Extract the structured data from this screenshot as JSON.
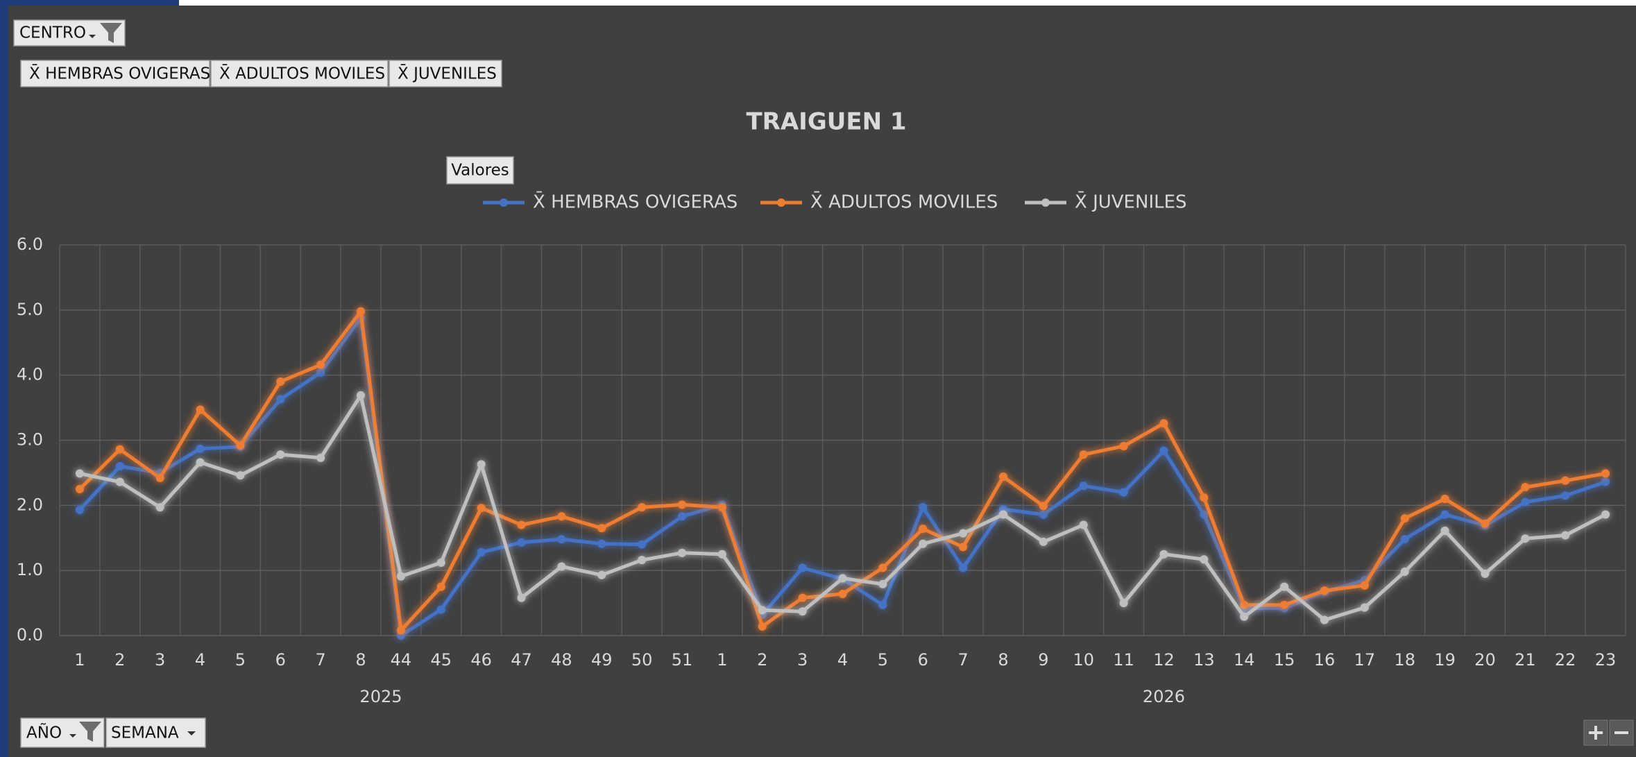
{
  "chart_data": {
    "type": "line",
    "title": "TRAIGUEN 1",
    "controls": {
      "centro": "CENTRO",
      "valores": "Valores",
      "ano": "AÑO",
      "semana": "SEMANA"
    },
    "groups": [
      {
        "label": "2025",
        "categories": [
          "1",
          "2",
          "3",
          "4",
          "5",
          "6",
          "7",
          "8",
          "44",
          "45",
          "46",
          "47",
          "48",
          "49",
          "50",
          "51"
        ]
      },
      {
        "label": "2026",
        "categories": [
          "1",
          "2",
          "3",
          "4",
          "5",
          "6",
          "7",
          "8",
          "9",
          "10",
          "11",
          "12",
          "13",
          "14",
          "15",
          "16",
          "17",
          "18",
          "19",
          "20",
          "21",
          "22",
          "23"
        ]
      }
    ],
    "ylim": [
      0,
      6
    ],
    "yticks": [
      {
        "value": 0,
        "label": "0.0"
      },
      {
        "value": 1,
        "label": "1.0"
      },
      {
        "value": 2,
        "label": "2.0"
      },
      {
        "value": 3,
        "label": "3.0"
      },
      {
        "value": 4,
        "label": "4.0"
      },
      {
        "value": 5,
        "label": "5.0"
      },
      {
        "value": 6,
        "label": "6.0"
      }
    ],
    "grid": true,
    "legend": "top",
    "series": [
      {
        "name": "X̄ HEMBRAS OVIGERAS",
        "color": "#4472c4",
        "values": [
          1.93,
          2.6,
          2.5,
          2.87,
          2.9,
          3.63,
          4.04,
          4.88,
          0.0,
          0.4,
          1.28,
          1.43,
          1.48,
          1.41,
          1.4,
          1.83,
          2.01,
          0.32,
          1.04,
          0.87,
          0.47,
          1.97,
          1.04,
          1.94,
          1.86,
          2.3,
          2.2,
          2.84,
          1.86,
          0.42,
          0.42,
          0.67,
          0.85,
          1.48,
          1.86,
          1.69,
          2.05,
          2.15,
          2.36
        ]
      },
      {
        "name": "X̄ ADULTOS MOVILES",
        "color": "#ed7d31",
        "values": [
          2.25,
          2.86,
          2.42,
          3.47,
          2.92,
          3.9,
          4.16,
          4.98,
          0.08,
          0.75,
          1.96,
          1.7,
          1.83,
          1.65,
          1.97,
          2.01,
          1.97,
          0.14,
          0.58,
          0.64,
          1.04,
          1.64,
          1.36,
          2.44,
          1.99,
          2.78,
          2.91,
          3.26,
          2.12,
          0.47,
          0.47,
          0.69,
          0.77,
          1.8,
          2.1,
          1.72,
          2.28,
          2.38,
          2.49
        ]
      },
      {
        "name": "X̄ JUVENILES",
        "color": "#bfbfbf",
        "values": [
          2.49,
          2.36,
          1.97,
          2.66,
          2.46,
          2.78,
          2.73,
          3.69,
          0.91,
          1.12,
          2.63,
          0.58,
          1.06,
          0.93,
          1.16,
          1.27,
          1.25,
          0.39,
          0.37,
          0.88,
          0.79,
          1.41,
          1.57,
          1.86,
          1.44,
          1.7,
          0.5,
          1.25,
          1.17,
          0.29,
          0.75,
          0.24,
          0.43,
          0.98,
          1.61,
          0.95,
          1.49,
          1.54,
          1.86
        ]
      }
    ]
  }
}
